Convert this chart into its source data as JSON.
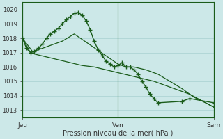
{
  "xlabel": "Pression niveau de la mer( hPa )",
  "bg_color": "#cce8e8",
  "grid_color": "#a8d0d0",
  "line_color": "#1a5c1a",
  "ylim": [
    1012.5,
    1020.5
  ],
  "xlim": [
    0,
    96
  ],
  "xtick_labels": [
    "Jeu",
    "Ven",
    "Sam"
  ],
  "xtick_positions": [
    0,
    48,
    96
  ],
  "ytick_values": [
    1013,
    1014,
    1015,
    1016,
    1017,
    1018,
    1019,
    1020
  ],
  "series_main": [
    1018.0,
    1017.3,
    1017.0,
    1017.1,
    1017.3,
    1017.6,
    1018.0,
    1018.3,
    1018.5,
    1018.7,
    1019.0,
    1019.3,
    1019.5,
    1019.75,
    1019.8,
    1019.6,
    1019.2,
    1018.6,
    1017.8,
    1017.2,
    1016.8,
    1016.4,
    1016.2,
    1016.0,
    1016.1,
    1016.3,
    1016.0,
    1016.0,
    1015.8,
    1015.5,
    1015.0,
    1014.6,
    1014.1,
    1013.8,
    1013.5,
    1013.6,
    1013.8,
    1013.5
  ],
  "series_x_main": [
    0,
    2,
    4,
    6,
    8,
    10,
    12,
    14,
    16,
    18,
    20,
    22,
    24,
    26,
    28,
    30,
    32,
    34,
    36,
    38,
    40,
    42,
    44,
    46,
    48,
    50,
    52,
    54,
    56,
    58,
    60,
    62,
    64,
    66,
    68,
    80,
    84,
    96
  ],
  "series_upper": [
    1018.0,
    1017.0,
    1017.3,
    1017.5,
    1017.8,
    1018.3,
    1016.2,
    1016.0,
    1016.0,
    1015.8,
    1015.5,
    1015.0,
    1014.5,
    1013.9,
    1013.5,
    1013.2
  ],
  "series_upper_x": [
    0,
    4,
    10,
    14,
    20,
    26,
    48,
    52,
    56,
    62,
    68,
    74,
    80,
    86,
    92,
    96
  ],
  "series_lower": [
    1018.0,
    1016.9,
    1016.7,
    1016.5,
    1016.3,
    1016.1,
    1016.0,
    1015.8,
    1015.6,
    1015.4,
    1015.2,
    1015.0,
    1014.7,
    1014.4,
    1014.1,
    1013.8,
    1013.5,
    1013.2
  ],
  "series_lower_x": [
    0,
    6,
    12,
    18,
    24,
    30,
    36,
    42,
    48,
    54,
    60,
    66,
    72,
    78,
    84,
    88,
    92,
    96
  ]
}
